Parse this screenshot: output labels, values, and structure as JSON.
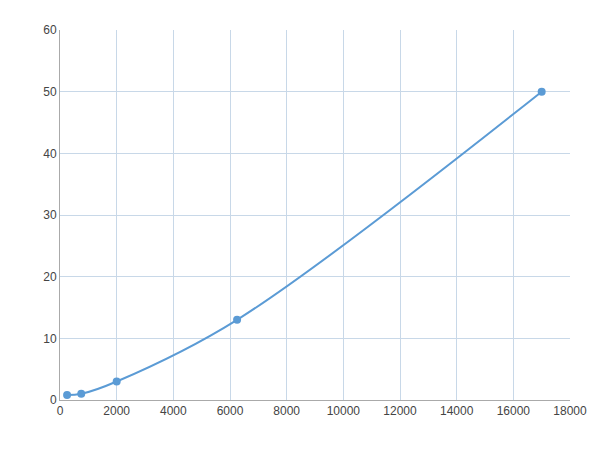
{
  "chart_data": {
    "type": "line",
    "x": [
      250,
      750,
      2000,
      6250,
      17000
    ],
    "values": [
      0.8,
      1.0,
      3.0,
      13.0,
      50.0
    ],
    "color": "#5b9bd5",
    "marker": "circle",
    "line_style": "solid",
    "xlim": [
      0,
      18000
    ],
    "ylim": [
      0,
      60
    ],
    "xticks": [
      0,
      2000,
      4000,
      6000,
      8000,
      10000,
      12000,
      14000,
      16000,
      18000
    ],
    "yticks": [
      0,
      10,
      20,
      30,
      40,
      50,
      60
    ],
    "grid": true
  }
}
